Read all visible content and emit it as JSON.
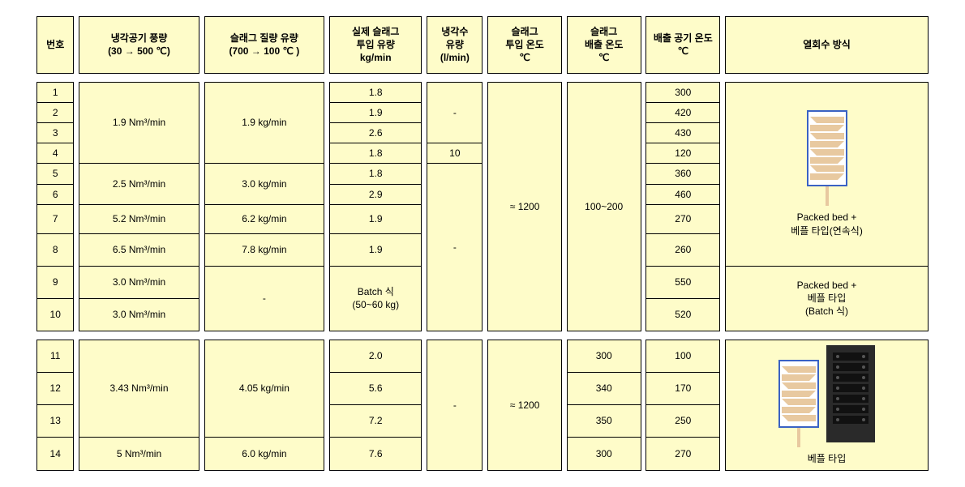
{
  "headers": {
    "no": "번호",
    "coolAir": "냉각공기 풍량\n(30 → 500 ℃)",
    "slagMass": "슬래그 질량 유량\n(700 → 100 ℃ )",
    "actualSlag": "실제 슬래그\n투입 유량\nkg/min",
    "coolWater": "냉각수\n유량\n(l/min)",
    "tIn": "슬래그\n투입 온도\n℃",
    "tOut": "슬래그\n배출 온도\n℃",
    "airT": "배출 공기 온도\n℃",
    "method": "열회수 방식"
  },
  "group1": {
    "rows": [
      "1",
      "2",
      "3",
      "4",
      "5",
      "6",
      "7",
      "8",
      "9",
      "10"
    ],
    "airFlow": {
      "r1_4": "1.9 Nm³/min",
      "r5_6": "2.5 Nm³/min",
      "r7": "5.2 Nm³/min",
      "r8": "6.5 Nm³/min",
      "r9": "3.0 Nm³/min",
      "r10": "3.0 Nm³/min"
    },
    "slagMass": {
      "r1_4": "1.9 kg/min",
      "r5_6": "3.0 kg/min",
      "r7": "6.2 kg/min",
      "r8": "7.8 kg/min",
      "r9_10": "-"
    },
    "actual": {
      "r1": "1.8",
      "r2": "1.9",
      "r3": "2.6",
      "r4": "1.8",
      "r5": "1.8",
      "r6": "2.9",
      "r7": "1.9",
      "r8": "1.9",
      "r9_10": "Batch 식\n(50~60 kg)"
    },
    "water": {
      "r1_3": "-",
      "r4": "10",
      "r5_10": "-"
    },
    "tIn": "≈ 1200",
    "tOut": "100~200",
    "airT": {
      "r1": "300",
      "r2": "420",
      "r3": "430",
      "r4": "120",
      "r5": "360",
      "r6": "460",
      "r7": "270",
      "r8": "260",
      "r9": "550",
      "r10": "520"
    },
    "method": {
      "r1_8": "Packed bed +\n베플 타입(연속식)",
      "r9_10": "Packed bed +\n베플 타입\n(Batch 식)"
    }
  },
  "group2": {
    "rows": [
      "11",
      "12",
      "13",
      "14"
    ],
    "airFlow": {
      "r11_13": "3.43 Nm³/min",
      "r14": "5 Nm³/min"
    },
    "slagMass": {
      "r11_13": "4.05 kg/min",
      "r14": "6.0 kg/min"
    },
    "actual": {
      "r11": "2.0",
      "r12": "5.6",
      "r13": "7.2",
      "r14": "7.6"
    },
    "water": "-",
    "tIn": "≈ 1200",
    "tOut": {
      "r11": "300",
      "r12": "340",
      "r13": "350",
      "r14": "300"
    },
    "airT": {
      "r11": "100",
      "r12": "170",
      "r13": "250",
      "r14": "270"
    },
    "method": "베플 타입"
  },
  "style": {
    "cellBg": "#fefcc9",
    "border": "#000000",
    "pageBg": "#ffffff",
    "headerFontSize": 12,
    "cellFontSize": 12,
    "baffleBorder": "#3a62c4",
    "baffleFill": "#e8c9a0",
    "photoBg": "#2a2a2a"
  }
}
